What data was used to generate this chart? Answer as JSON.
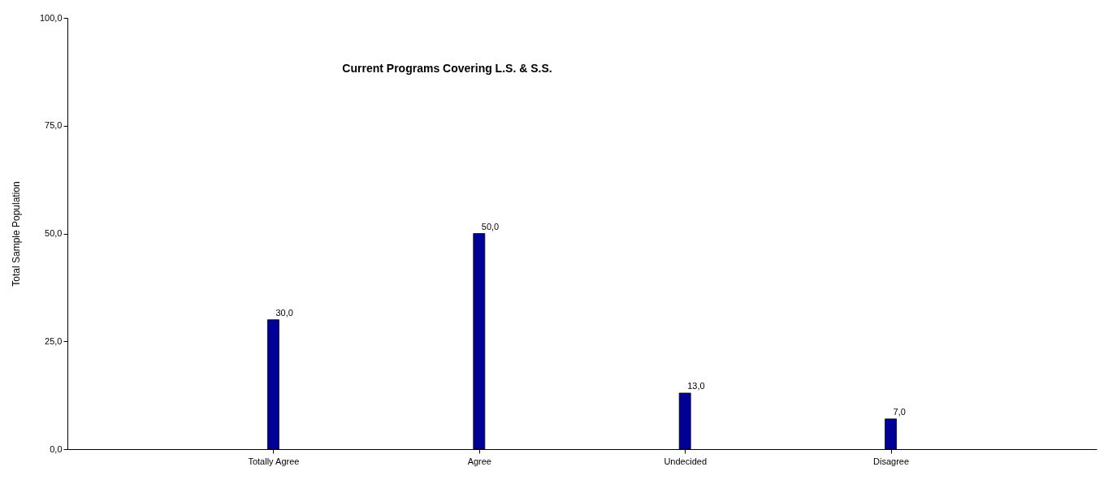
{
  "chart_data": {
    "type": "bar",
    "title": "Current Programs Covering  L.S. & S.S.",
    "ylabel": "Total Sample Population",
    "categories": [
      "Totally Agree",
      "Agree",
      "Undecided",
      "Disagree"
    ],
    "values": [
      30,
      50,
      13,
      7
    ],
    "value_labels": [
      "30,0",
      "50,0",
      "13,0",
      "7,0"
    ],
    "color": "#000099",
    "ylim": [
      0,
      100
    ],
    "yticks": [
      {
        "value": 0,
        "label": "0,0"
      },
      {
        "value": 25,
        "label": "25,0"
      },
      {
        "value": 50,
        "label": "50,0"
      },
      {
        "value": 75,
        "label": "75,0"
      },
      {
        "value": 100,
        "label": "100,0"
      }
    ],
    "grid": false
  }
}
